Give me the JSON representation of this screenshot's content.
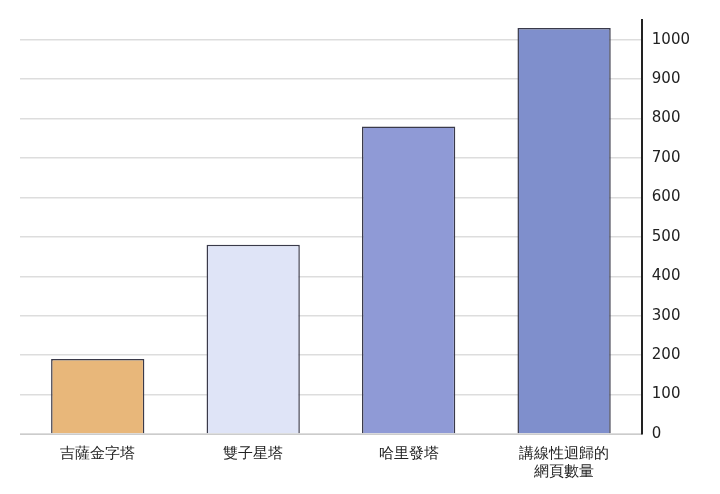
{
  "chart_data": {
    "type": "bar",
    "categories": [
      "吉薩金字塔",
      "雙子星塔",
      "哈里發塔",
      [
        "講線性迴歸的",
        "網頁數量"
      ]
    ],
    "values": [
      190,
      480,
      780,
      1030
    ],
    "colors": [
      "#e8b77a",
      "#dfe4f7",
      "#8f9ad6",
      "#7f8fcc"
    ],
    "ylim": [
      0,
      1050
    ],
    "yticks": [
      0,
      100,
      200,
      300,
      400,
      500,
      600,
      700,
      800,
      900,
      1000
    ],
    "grid": true
  }
}
